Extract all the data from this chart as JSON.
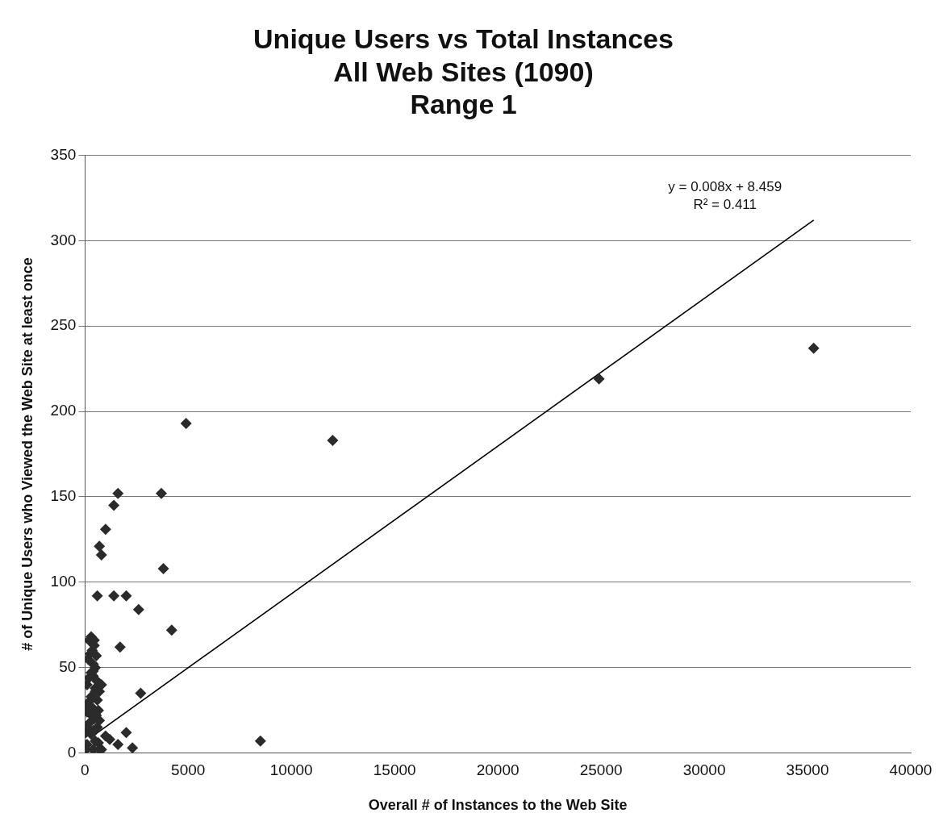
{
  "chart_data": {
    "type": "scatter",
    "title": "Unique Users vs Total Instances\nAll Web Sites (1090)\nRange 1",
    "xlabel": "Overall # of Instances to the Web Site",
    "ylabel": "# of Unique Users who Viewed the Web Site at least once",
    "xlim": [
      0,
      40000
    ],
    "xticks": [
      0,
      5000,
      10000,
      15000,
      20000,
      25000,
      30000,
      35000,
      40000
    ],
    "ylim": [
      0,
      350
    ],
    "yticks": [
      0,
      50,
      100,
      150,
      200,
      250,
      300,
      350
    ],
    "grid": "y",
    "legend": false,
    "marker": "diamond",
    "annotations": [
      "y = 0.008x + 8.459",
      "R² = 0.411"
    ],
    "series": [
      {
        "color": "#2b2b2b",
        "x": [
          35300,
          24900,
          12000,
          8500,
          4900,
          3700,
          3800,
          4200,
          2600,
          2700,
          1600,
          1400,
          1000,
          700,
          800,
          1400,
          2000,
          600,
          1700,
          2000,
          2300,
          1600,
          1000,
          800,
          1200,
          50,
          100,
          400,
          500,
          650,
          700,
          50,
          100,
          250,
          300,
          400,
          450,
          550,
          600,
          650,
          700,
          100,
          200,
          300,
          400,
          500,
          600,
          100,
          200,
          300,
          400,
          500,
          150,
          250,
          350,
          450,
          200,
          300,
          400,
          500,
          600,
          700,
          800,
          100,
          250,
          400,
          550,
          450
        ],
        "values": [
          237,
          219,
          183,
          7,
          193,
          152,
          108,
          72,
          84,
          35,
          152,
          145,
          131,
          121,
          116,
          92,
          92,
          92,
          62,
          12,
          3,
          5,
          10,
          2,
          8,
          2,
          5,
          2,
          7,
          6,
          2,
          12,
          15,
          18,
          11,
          13,
          20,
          22,
          15,
          25,
          19,
          28,
          30,
          33,
          26,
          38,
          31,
          40,
          44,
          47,
          52,
          36,
          55,
          58,
          60,
          63,
          66,
          68,
          45,
          50,
          42,
          36,
          40,
          24,
          23,
          48,
          57,
          66
        ]
      },
      {
        "type": "line",
        "color": "#000000",
        "marker": "none",
        "x": [
          500,
          35300
        ],
        "values": [
          11,
          312
        ]
      }
    ]
  }
}
